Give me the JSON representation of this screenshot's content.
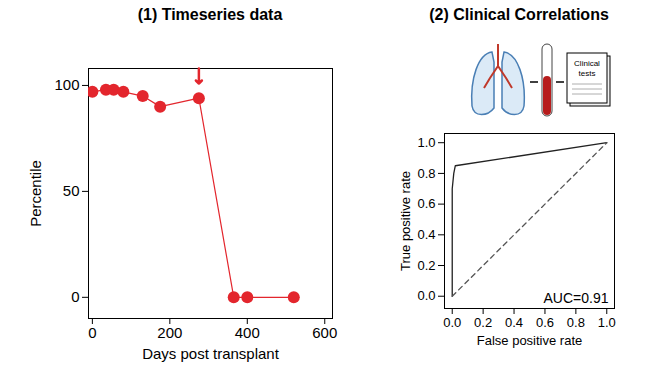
{
  "chart_data": [
    {
      "type": "line",
      "title": "(1) Timeseries data",
      "x_label": "Days post transplant",
      "y_label": "Percentile",
      "x": [
        0,
        35,
        55,
        80,
        130,
        175,
        275,
        365,
        400,
        520
      ],
      "values": [
        97,
        98,
        98,
        97,
        95,
        90,
        94,
        0,
        0,
        0
      ],
      "color": "#e3262d",
      "marker": "circle",
      "xlim": [
        -10,
        620
      ],
      "xticks": [
        0,
        200,
        400,
        600
      ],
      "ylim": [
        -10,
        108
      ],
      "yticks": [
        0,
        50,
        100
      ],
      "grid": false,
      "arrow": {
        "x": 275
      }
    },
    {
      "type": "line",
      "title": "(2) Clinical Correlations",
      "icon_label": "Clinical tests",
      "x_label": "False positive rate",
      "y_label": "True positive rate",
      "series": [
        {
          "x": [
            0,
            0,
            0.01,
            0.02,
            1
          ],
          "values": [
            0,
            0.7,
            0.8,
            0.85,
            1
          ],
          "color": "#222222",
          "line_style": "solid"
        },
        {
          "x": [
            0,
            1
          ],
          "values": [
            0,
            1
          ],
          "color": "#555555",
          "line_style": "dashed"
        }
      ],
      "xlim": [
        -0.05,
        1.05
      ],
      "xticks": [
        {
          "value": 0,
          "label": "0.0"
        },
        {
          "value": 0.2,
          "label": "0.2"
        },
        {
          "value": 0.4,
          "label": "0.4"
        },
        {
          "value": 0.6,
          "label": "0.6"
        },
        {
          "value": 0.8,
          "label": "0.8"
        },
        {
          "value": 1,
          "label": "1.0"
        }
      ],
      "ylim": [
        -0.08,
        1.06
      ],
      "yticks": [
        {
          "value": 0,
          "label": "0.0"
        },
        {
          "value": 0.2,
          "label": "0.2"
        },
        {
          "value": 0.4,
          "label": "0.4"
        },
        {
          "value": 0.6,
          "label": "0.6"
        },
        {
          "value": 0.8,
          "label": "0.8"
        },
        {
          "value": 1,
          "label": "1.0"
        }
      ],
      "annotation": "AUC=0.91",
      "grid": false
    }
  ]
}
